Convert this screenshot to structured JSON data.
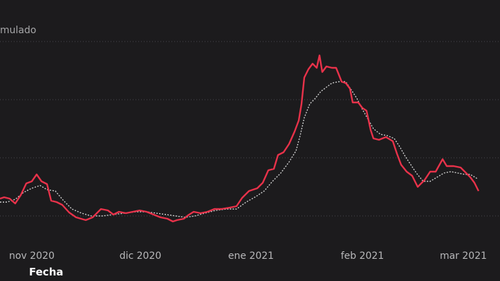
{
  "chart_data": {
    "type": "line",
    "ylabel": "mulado",
    "xlabel": "Fecha",
    "x_ticks": [
      "nov 2020",
      "dic 2020",
      "ene 2021",
      "feb 2021",
      "mar 2021"
    ],
    "grid": true,
    "series": [
      {
        "color": "#e8324a",
        "style": "solid",
        "points": [
          [
            0,
            287
          ],
          [
            6,
            285
          ],
          [
            14,
            287
          ],
          [
            22,
            294
          ],
          [
            30,
            282
          ],
          [
            38,
            265
          ],
          [
            46,
            262
          ],
          [
            53,
            252
          ],
          [
            60,
            262
          ],
          [
            68,
            266
          ],
          [
            74,
            290
          ],
          [
            82,
            292
          ],
          [
            90,
            296
          ],
          [
            100,
            307
          ],
          [
            110,
            314
          ],
          [
            124,
            318
          ],
          [
            134,
            314
          ],
          [
            146,
            302
          ],
          [
            156,
            304
          ],
          [
            164,
            310
          ],
          [
            172,
            306
          ],
          [
            182,
            308
          ],
          [
            192,
            306
          ],
          [
            202,
            304
          ],
          [
            212,
            306
          ],
          [
            222,
            310
          ],
          [
            232,
            314
          ],
          [
            242,
            316
          ],
          [
            250,
            320
          ],
          [
            256,
            318
          ],
          [
            266,
            316
          ],
          [
            272,
            311
          ],
          [
            280,
            306
          ],
          [
            290,
            308
          ],
          [
            300,
            306
          ],
          [
            310,
            302
          ],
          [
            320,
            302
          ],
          [
            332,
            300
          ],
          [
            342,
            298
          ],
          [
            350,
            286
          ],
          [
            360,
            276
          ],
          [
            372,
            272
          ],
          [
            380,
            264
          ],
          [
            388,
            246
          ],
          [
            396,
            244
          ],
          [
            402,
            224
          ],
          [
            410,
            220
          ],
          [
            418,
            208
          ],
          [
            426,
            190
          ],
          [
            432,
            174
          ],
          [
            436,
            150
          ],
          [
            440,
            112
          ],
          [
            446,
            100
          ],
          [
            452,
            92
          ],
          [
            458,
            98
          ],
          [
            462,
            80
          ],
          [
            466,
            104
          ],
          [
            472,
            96
          ],
          [
            480,
            98
          ],
          [
            486,
            98
          ],
          [
            494,
            118
          ],
          [
            500,
            120
          ],
          [
            506,
            128
          ],
          [
            510,
            148
          ],
          [
            518,
            148
          ],
          [
            524,
            156
          ],
          [
            530,
            160
          ],
          [
            536,
            188
          ],
          [
            540,
            200
          ],
          [
            548,
            202
          ],
          [
            558,
            198
          ],
          [
            568,
            204
          ],
          [
            574,
            222
          ],
          [
            580,
            238
          ],
          [
            588,
            248
          ],
          [
            596,
            254
          ],
          [
            604,
            270
          ],
          [
            614,
            260
          ],
          [
            622,
            248
          ],
          [
            630,
            248
          ],
          [
            640,
            230
          ],
          [
            646,
            240
          ],
          [
            656,
            240
          ],
          [
            666,
            242
          ],
          [
            672,
            248
          ],
          [
            680,
            256
          ],
          [
            686,
            264
          ],
          [
            692,
            276
          ]
        ]
      },
      {
        "color": "#d0d0d0",
        "style": "dotted",
        "points": [
          [
            0,
            292
          ],
          [
            10,
            292
          ],
          [
            22,
            288
          ],
          [
            34,
            278
          ],
          [
            46,
            272
          ],
          [
            58,
            268
          ],
          [
            68,
            274
          ],
          [
            80,
            276
          ],
          [
            92,
            290
          ],
          [
            104,
            302
          ],
          [
            118,
            308
          ],
          [
            132,
            312
          ],
          [
            148,
            312
          ],
          [
            164,
            310
          ],
          [
            180,
            308
          ],
          [
            196,
            306
          ],
          [
            212,
            306
          ],
          [
            226,
            308
          ],
          [
            240,
            310
          ],
          [
            254,
            312
          ],
          [
            268,
            314
          ],
          [
            282,
            312
          ],
          [
            296,
            308
          ],
          [
            312,
            304
          ],
          [
            328,
            302
          ],
          [
            342,
            302
          ],
          [
            356,
            292
          ],
          [
            370,
            284
          ],
          [
            382,
            276
          ],
          [
            394,
            262
          ],
          [
            406,
            250
          ],
          [
            418,
            234
          ],
          [
            428,
            218
          ],
          [
            434,
            196
          ],
          [
            440,
            170
          ],
          [
            448,
            150
          ],
          [
            456,
            142
          ],
          [
            464,
            132
          ],
          [
            472,
            126
          ],
          [
            480,
            120
          ],
          [
            490,
            118
          ],
          [
            500,
            118
          ],
          [
            508,
            130
          ],
          [
            516,
            142
          ],
          [
            524,
            158
          ],
          [
            532,
            172
          ],
          [
            540,
            186
          ],
          [
            550,
            194
          ],
          [
            560,
            196
          ],
          [
            570,
            200
          ],
          [
            578,
            212
          ],
          [
            586,
            226
          ],
          [
            594,
            238
          ],
          [
            602,
            250
          ],
          [
            612,
            262
          ],
          [
            622,
            262
          ],
          [
            632,
            256
          ],
          [
            642,
            250
          ],
          [
            652,
            248
          ],
          [
            662,
            250
          ],
          [
            672,
            252
          ],
          [
            680,
            252
          ],
          [
            690,
            258
          ]
        ]
      }
    ]
  }
}
